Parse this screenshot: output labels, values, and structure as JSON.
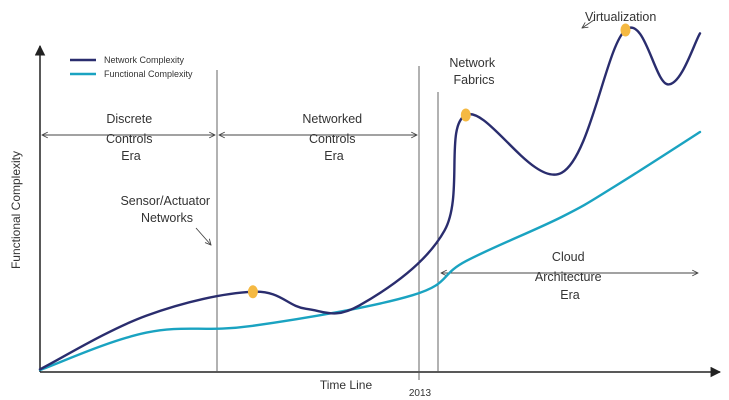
{
  "chart_data": {
    "type": "line",
    "title": "",
    "xlabel": "Time Line",
    "ylabel": "Functional Complexity",
    "x_tick_label": "2013",
    "legend_position": "top-left",
    "grid": false,
    "colors": {
      "network": "#2a2d6e",
      "functional": "#1aa3c1",
      "marker": "#f5b942",
      "axis": "#222222"
    },
    "series": [
      {
        "name": "Network Complexity",
        "color": "#2a2d6e",
        "points": [
          [
            0,
            0.2
          ],
          [
            10,
            16
          ],
          [
            20,
            23
          ],
          [
            25,
            18
          ],
          [
            30,
            19
          ],
          [
            38,
            41
          ],
          [
            40,
            75
          ],
          [
            49,
            58
          ],
          [
            55,
            100
          ],
          [
            59,
            84
          ],
          [
            62,
            99
          ]
        ]
      },
      {
        "name": "Functional Complexity",
        "color": "#1aa3c1",
        "points": [
          [
            0,
            0
          ],
          [
            10,
            11
          ],
          [
            20,
            13
          ],
          [
            35,
            22
          ],
          [
            40,
            32
          ],
          [
            49,
            45
          ],
          [
            54,
            54
          ],
          [
            62,
            70
          ]
        ]
      }
    ],
    "eras": [
      {
        "label_lines": [
          "Discrete",
          "Controls",
          "Era"
        ]
      },
      {
        "label_lines": [
          "Networked",
          "Controls",
          "Era"
        ]
      },
      {
        "label_lines": [
          "Cloud",
          "Architecture",
          "Era"
        ]
      }
    ],
    "milestones": [
      {
        "label_lines": [
          "Sensor/Actuator",
          "Networks"
        ]
      },
      {
        "label_lines": [
          "Network",
          "Fabrics"
        ]
      },
      {
        "label_lines": [
          "Virtualization"
        ]
      }
    ]
  }
}
